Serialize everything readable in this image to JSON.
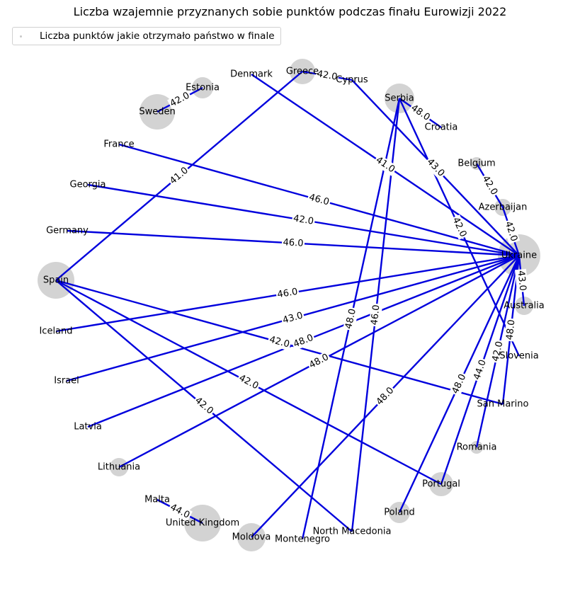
{
  "title": "Liczba wzajemnie przyznanych sobie punktów podczas finału Eurowizji 2022",
  "legend": {
    "label": "Liczba punktów jakie otrzymało państwo w finale"
  },
  "colors": {
    "edge": "#0000dd",
    "node": "#d3d3d3",
    "text": "#000000"
  },
  "chart_data": {
    "type": "network",
    "nodes": [
      {
        "name": "Ukraine"
      },
      {
        "name": "Australia"
      },
      {
        "name": "Slovenia"
      },
      {
        "name": "San Marino"
      },
      {
        "name": "Romania"
      },
      {
        "name": "Portugal"
      },
      {
        "name": "Poland"
      },
      {
        "name": "North Macedonia"
      },
      {
        "name": "Montenegro"
      },
      {
        "name": "Moldova"
      },
      {
        "name": "United Kingdom"
      },
      {
        "name": "Malta"
      },
      {
        "name": "Lithuania"
      },
      {
        "name": "Latvia"
      },
      {
        "name": "Israel"
      },
      {
        "name": "Iceland"
      },
      {
        "name": "Spain"
      },
      {
        "name": "Germany"
      },
      {
        "name": "Georgia"
      },
      {
        "name": "France"
      },
      {
        "name": "Sweden"
      },
      {
        "name": "Estonia"
      },
      {
        "name": "Denmark"
      },
      {
        "name": "Greece"
      },
      {
        "name": "Cyprus"
      },
      {
        "name": "Serbia"
      },
      {
        "name": "Croatia"
      },
      {
        "name": "Belgium"
      },
      {
        "name": "Azerbaijan"
      }
    ],
    "edges": [
      {
        "source": "Sweden",
        "target": "Estonia",
        "weight": 42.0
      },
      {
        "source": "Greece",
        "target": "Cyprus",
        "weight": 42.0
      },
      {
        "source": "Serbia",
        "target": "Croatia",
        "weight": 48.0
      },
      {
        "source": "Belgium",
        "target": "Azerbaijan",
        "weight": 42.0
      },
      {
        "source": "Malta",
        "target": "United Kingdom",
        "weight": 44.0
      },
      {
        "source": "Greece",
        "target": "Spain",
        "weight": 41.0
      },
      {
        "source": "Denmark",
        "target": "Ukraine",
        "weight": 41.0
      },
      {
        "source": "Cyprus",
        "target": "Ukraine",
        "weight": 43.0
      },
      {
        "source": "Serbia",
        "target": "Slovenia",
        "weight": 42.0
      },
      {
        "source": "Azerbaijan",
        "target": "Ukraine",
        "weight": 42.0
      },
      {
        "source": "France",
        "target": "Ukraine",
        "weight": 46.0
      },
      {
        "source": "Georgia",
        "target": "Ukraine",
        "weight": 42.0
      },
      {
        "source": "Germany",
        "target": "Ukraine",
        "weight": 46.0
      },
      {
        "source": "Ukraine",
        "target": "Australia",
        "weight": 43.0
      },
      {
        "source": "Iceland",
        "target": "Ukraine",
        "weight": 46.0
      },
      {
        "source": "Israel",
        "target": "Ukraine",
        "weight": 43.0
      },
      {
        "source": "Latvia",
        "target": "Ukraine",
        "weight": 48.0
      },
      {
        "source": "Lithuania",
        "target": "Ukraine",
        "weight": 48.0
      },
      {
        "source": "Moldova",
        "target": "Ukraine",
        "weight": 48.0
      },
      {
        "source": "Poland",
        "target": "Ukraine",
        "weight": 48.0
      },
      {
        "source": "Portugal",
        "target": "Ukraine",
        "weight": 44.0
      },
      {
        "source": "Romania",
        "target": "Ukraine",
        "weight": 42.0
      },
      {
        "source": "Spain",
        "target": "San Marino",
        "weight": 42.0
      },
      {
        "source": "Spain",
        "target": "Portugal",
        "weight": 42.0
      },
      {
        "source": "Spain",
        "target": "North Macedonia",
        "weight": 42.0
      },
      {
        "source": "Serbia",
        "target": "Montenegro",
        "weight": 48.0
      },
      {
        "source": "Serbia",
        "target": "North Macedonia",
        "weight": 46.0
      },
      {
        "source": "San Marino",
        "target": "Ukraine",
        "weight": 48.0
      }
    ]
  }
}
